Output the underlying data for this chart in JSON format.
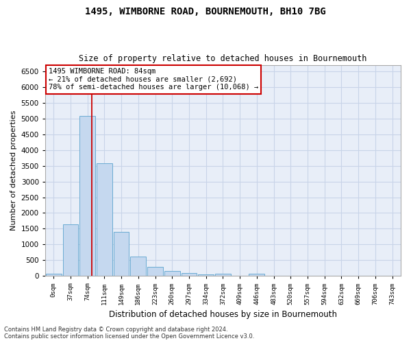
{
  "title1": "1495, WIMBORNE ROAD, BOURNEMOUTH, BH10 7BG",
  "title2": "Size of property relative to detached houses in Bournemouth",
  "xlabel": "Distribution of detached houses by size in Bournemouth",
  "ylabel": "Number of detached properties",
  "footnote1": "Contains HM Land Registry data © Crown copyright and database right 2024.",
  "footnote2": "Contains public sector information licensed under the Open Government Licence v3.0.",
  "categories": [
    "0sqm",
    "37sqm",
    "74sqm",
    "111sqm",
    "149sqm",
    "186sqm",
    "223sqm",
    "260sqm",
    "297sqm",
    "334sqm",
    "372sqm",
    "409sqm",
    "446sqm",
    "483sqm",
    "520sqm",
    "557sqm",
    "594sqm",
    "632sqm",
    "669sqm",
    "706sqm",
    "743sqm"
  ],
  "values": [
    70,
    1640,
    5080,
    3580,
    1410,
    610,
    300,
    155,
    90,
    55,
    65,
    0,
    65,
    0,
    0,
    0,
    0,
    0,
    0,
    0,
    0
  ],
  "bar_color": "#c5d8ef",
  "bar_edge_color": "#6aabd2",
  "vline_x": 2.27,
  "vline_color": "#cc0000",
  "annotation_text": "1495 WIMBORNE ROAD: 84sqm\n← 21% of detached houses are smaller (2,692)\n78% of semi-detached houses are larger (10,068) →",
  "annotation_box_color": "#ffffff",
  "annotation_box_edge": "#cc0000",
  "ylim": [
    0,
    6700
  ],
  "yticks": [
    0,
    500,
    1000,
    1500,
    2000,
    2500,
    3000,
    3500,
    4000,
    4500,
    5000,
    5500,
    6000,
    6500
  ],
  "grid_color": "#c8d4e8",
  "background_color": "#e8eef8"
}
